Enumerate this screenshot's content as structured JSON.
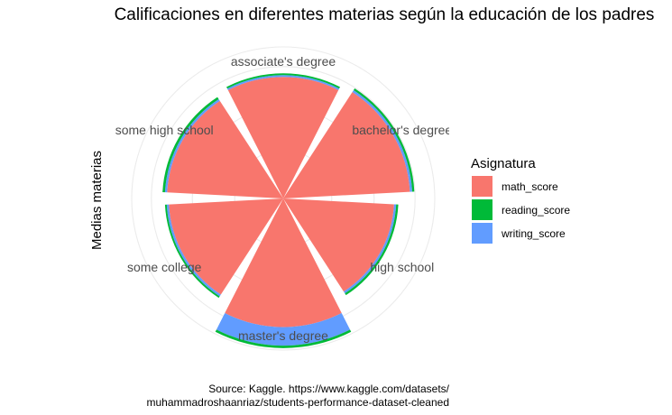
{
  "chart_data": {
    "type": "bar",
    "coord": "polar",
    "stacked": true,
    "title": "Calificaciones en diferentes materias según la educación de los padres",
    "ylabel": "Medias materias",
    "xlabel": "",
    "categories": [
      "associate's degree",
      "bachelor's degree",
      "high school",
      "master's degree",
      "some college",
      "some high school"
    ],
    "series": [
      {
        "name": "math_score",
        "color": "#F8766D",
        "values": [
          69,
          72,
          63,
          73,
          65,
          66
        ]
      },
      {
        "name": "reading_score",
        "color": "#00BA38",
        "values": [
          1.0,
          1.2,
          1.2,
          1.4,
          1.0,
          1.4
        ]
      },
      {
        "name": "writing_score",
        "color": "#619CFF",
        "values": [
          1.0,
          1.3,
          1.2,
          10.5,
          1.2,
          1.2
        ]
      }
    ],
    "ylim": [
      0,
      86
    ],
    "grid": true,
    "legend": {
      "title": "Asignatura",
      "position": "right",
      "entries": [
        "math_score",
        "reading_score",
        "writing_score"
      ]
    },
    "caption": [
      "Source: Kaggle. https://www.kaggle.com/datasets/",
      "muhammadroshaanriaz/students-performance-dataset-cleaned"
    ]
  }
}
